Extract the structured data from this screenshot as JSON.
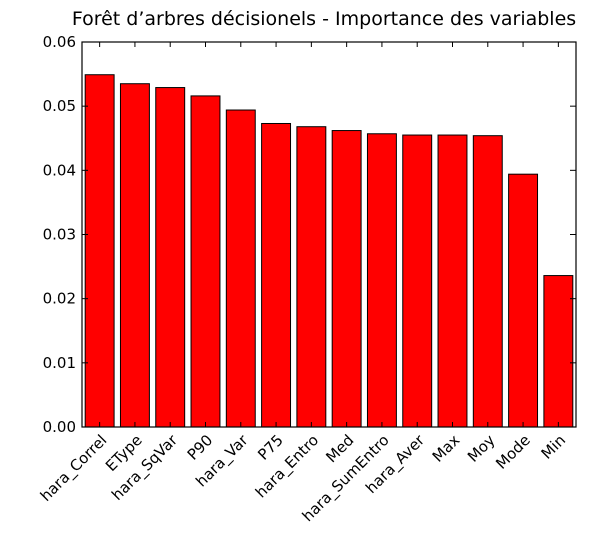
{
  "chart_data": {
    "type": "bar",
    "title": "Forêt d’arbres décisionels - Importance des variables",
    "xlabel": "",
    "ylabel": "",
    "categories": [
      "hara_Correl",
      "EType",
      "hara_SqVar",
      "P90",
      "hara_Var",
      "P75",
      "hara_Entro",
      "Med",
      "hara_SumEntro",
      "hara_Aver",
      "Max",
      "Moy",
      "Mode",
      "Min"
    ],
    "values": [
      0.0549,
      0.0535,
      0.0529,
      0.0516,
      0.0494,
      0.0473,
      0.0468,
      0.0462,
      0.0457,
      0.0455,
      0.0455,
      0.0454,
      0.0394,
      0.0236
    ],
    "ylim": [
      0,
      0.06
    ],
    "yticks": [
      "0.00",
      "0.01",
      "0.02",
      "0.03",
      "0.04",
      "0.05",
      "0.06"
    ],
    "bar_color": "#ff0000",
    "edge_color": "#000000",
    "grid": false,
    "legend": "none"
  }
}
